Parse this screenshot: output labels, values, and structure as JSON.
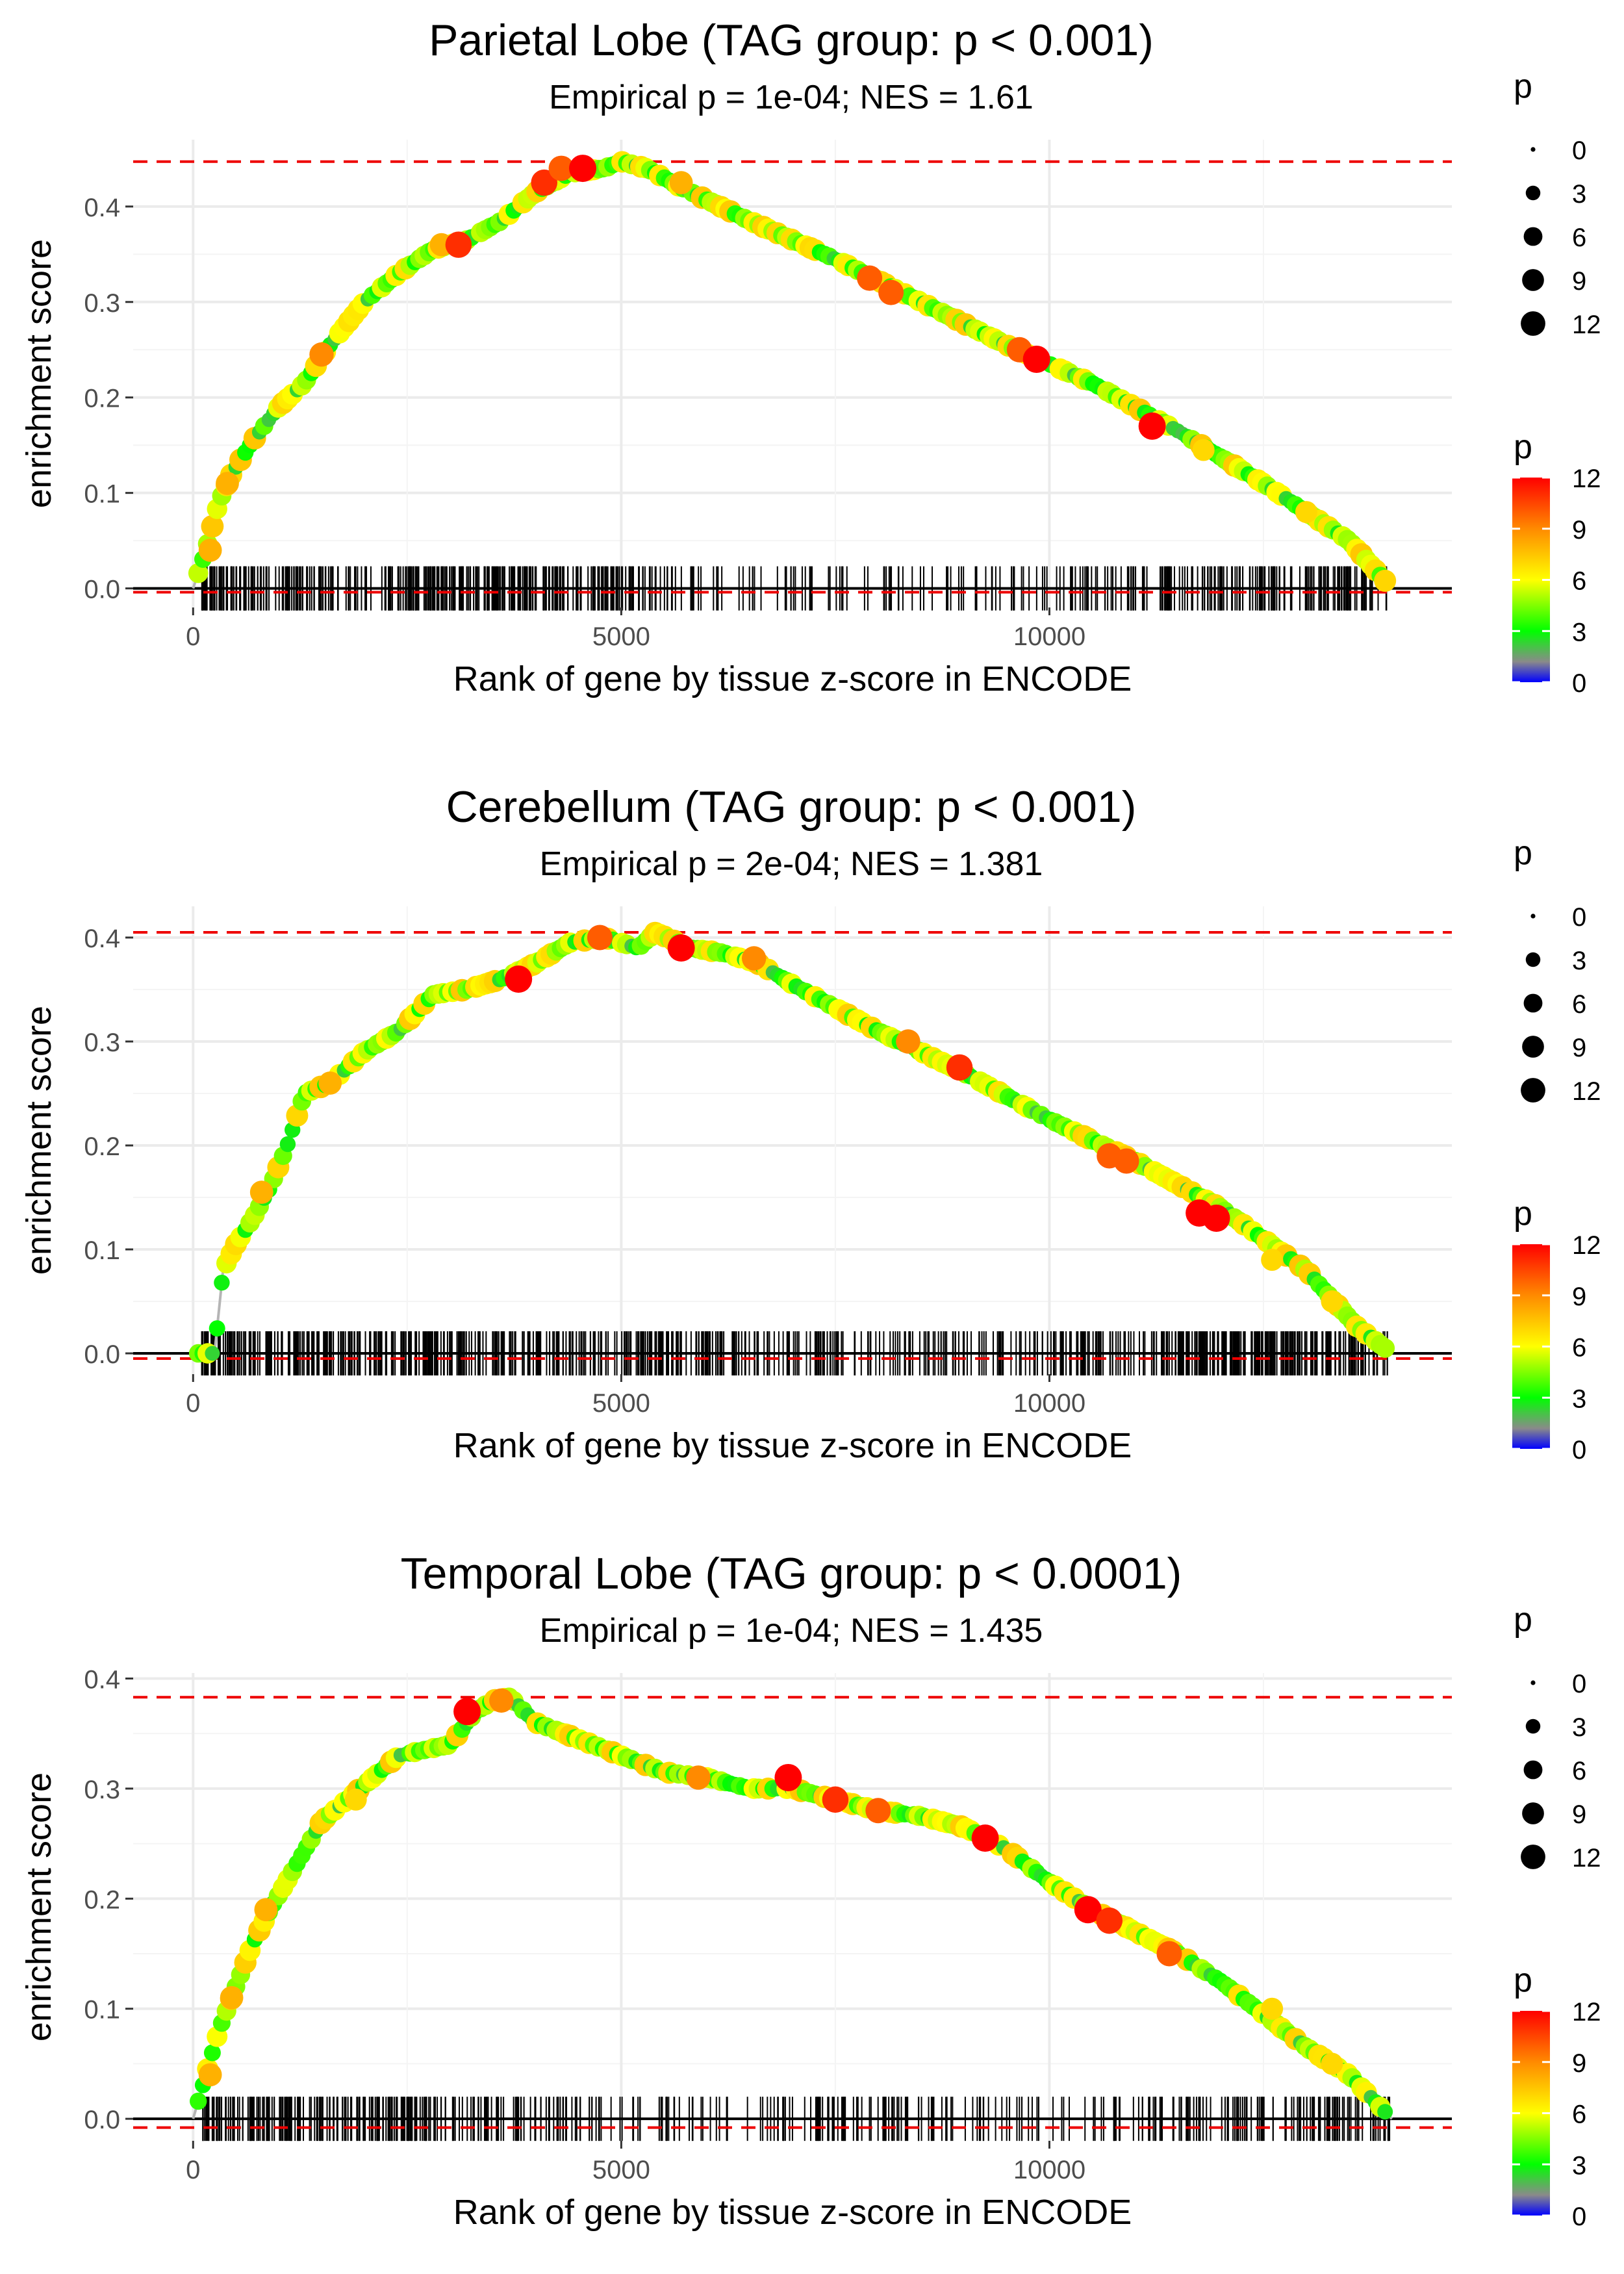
{
  "chart_data": [
    {
      "type": "line",
      "title": "Parietal Lobe (TAG group: p < 0.001)",
      "subtitle": "Empirical p = 1e-04; NES = 1.61",
      "xlabel": "Rank of gene by tissue z-score in ENCODE",
      "ylabel": "enrichment score",
      "xlim": [
        -700,
        14700
      ],
      "ylim": [
        -0.02,
        0.47
      ],
      "x_ticks": [
        0,
        5000,
        10000
      ],
      "x_tick_labels": [
        "0",
        "5000",
        "10000"
      ],
      "y_ticks": [
        0.0,
        0.1,
        0.2,
        0.3,
        0.4
      ],
      "y_tick_labels": [
        "0.0",
        "0.1",
        "0.2",
        "0.3",
        "0.4"
      ],
      "max_es": 0.447,
      "min_es": -0.004,
      "curve": {
        "x": [
          0,
          150,
          300,
          450,
          700,
          1000,
          1300,
          1600,
          2000,
          2400,
          2800,
          3200,
          3600,
          4000,
          4400,
          4800,
          5000,
          5300,
          5700,
          6500,
          7500,
          8500,
          9500,
          10500,
          11500,
          12500,
          13500,
          14000
        ],
        "y": [
          0.0,
          0.04,
          0.09,
          0.12,
          0.155,
          0.19,
          0.215,
          0.255,
          0.3,
          0.33,
          0.355,
          0.365,
          0.385,
          0.415,
          0.435,
          0.44,
          0.447,
          0.44,
          0.42,
          0.385,
          0.345,
          0.3,
          0.255,
          0.215,
          0.165,
          0.11,
          0.05,
          0.0
        ]
      },
      "highlight_points": [
        {
          "x": 200,
          "y": 0.04,
          "p": 8
        },
        {
          "x": 400,
          "y": 0.11,
          "p": 8
        },
        {
          "x": 1500,
          "y": 0.245,
          "p": 9
        },
        {
          "x": 2900,
          "y": 0.36,
          "p": 8
        },
        {
          "x": 3100,
          "y": 0.36,
          "p": 11
        },
        {
          "x": 4100,
          "y": 0.425,
          "p": 11
        },
        {
          "x": 4300,
          "y": 0.44,
          "p": 10
        },
        {
          "x": 4550,
          "y": 0.44,
          "p": 12
        },
        {
          "x": 5700,
          "y": 0.425,
          "p": 8
        },
        {
          "x": 7900,
          "y": 0.325,
          "p": 10
        },
        {
          "x": 8150,
          "y": 0.31,
          "p": 10
        },
        {
          "x": 9650,
          "y": 0.25,
          "p": 10
        },
        {
          "x": 9850,
          "y": 0.24,
          "p": 12
        },
        {
          "x": 11200,
          "y": 0.17,
          "p": 12
        },
        {
          "x": 11800,
          "y": 0.145,
          "p": 7
        },
        {
          "x": 13000,
          "y": 0.08,
          "p": 7
        }
      ],
      "gene_hits": {
        "density": [
          4,
          3,
          2,
          4,
          4,
          3,
          3,
          1,
          1,
          1,
          1,
          1,
          1,
          2,
          2,
          3,
          3,
          3
        ]
      },
      "legend_size": {
        "title": "p",
        "values": [
          0,
          3,
          6,
          9,
          12
        ],
        "labels": [
          "0",
          "3",
          "6",
          "9",
          "12"
        ]
      },
      "legend_color": {
        "title": "p",
        "labels": [
          "12",
          "9",
          "6",
          "3",
          "0"
        ],
        "values": [
          12,
          9,
          6,
          3,
          0
        ]
      }
    },
    {
      "type": "line",
      "title": "Cerebellum (TAG group: p < 0.001)",
      "subtitle": "Empirical p = 2e-04; NES = 1.381",
      "xlabel": "Rank of gene by tissue z-score in ENCODE",
      "ylabel": "enrichment score",
      "xlim": [
        -700,
        14700
      ],
      "ylim": [
        -0.02,
        0.43
      ],
      "x_ticks": [
        0,
        5000,
        10000
      ],
      "x_tick_labels": [
        "0",
        "5000",
        "10000"
      ],
      "y_ticks": [
        0.0,
        0.1,
        0.2,
        0.3,
        0.4
      ],
      "y_tick_labels": [
        "0.0",
        "0.1",
        "0.2",
        "0.3",
        "0.4"
      ],
      "max_es": 0.405,
      "min_es": -0.005,
      "curve": {
        "x": [
          0,
          250,
          350,
          500,
          700,
          900,
          1100,
          1300,
          1600,
          2000,
          2400,
          2800,
          3200,
          3600,
          4000,
          4400,
          4800,
          5200,
          5400,
          5800,
          6200,
          6600,
          7000,
          8000,
          9000,
          10000,
          11000,
          12000,
          13000,
          13600,
          14000
        ],
        "y": [
          0.0,
          0.0,
          0.08,
          0.105,
          0.13,
          0.16,
          0.2,
          0.25,
          0.26,
          0.29,
          0.31,
          0.345,
          0.35,
          0.36,
          0.375,
          0.395,
          0.4,
          0.39,
          0.405,
          0.39,
          0.385,
          0.375,
          0.355,
          0.31,
          0.27,
          0.225,
          0.185,
          0.14,
          0.08,
          0.025,
          0.0
        ]
      },
      "highlight_points": [
        {
          "x": 800,
          "y": 0.155,
          "p": 8
        },
        {
          "x": 1600,
          "y": 0.26,
          "p": 8
        },
        {
          "x": 3800,
          "y": 0.36,
          "p": 12
        },
        {
          "x": 4750,
          "y": 0.4,
          "p": 10
        },
        {
          "x": 5700,
          "y": 0.39,
          "p": 12
        },
        {
          "x": 6550,
          "y": 0.38,
          "p": 9
        },
        {
          "x": 8350,
          "y": 0.3,
          "p": 9
        },
        {
          "x": 8950,
          "y": 0.275,
          "p": 11
        },
        {
          "x": 10700,
          "y": 0.19,
          "p": 10
        },
        {
          "x": 10900,
          "y": 0.185,
          "p": 10
        },
        {
          "x": 11750,
          "y": 0.135,
          "p": 12
        },
        {
          "x": 11950,
          "y": 0.13,
          "p": 12
        },
        {
          "x": 12600,
          "y": 0.09,
          "p": 7
        },
        {
          "x": 13300,
          "y": 0.05,
          "p": 7
        }
      ],
      "gene_hits": {
        "density": [
          4,
          4,
          3,
          4,
          3,
          3,
          3,
          3,
          2,
          2,
          2,
          2,
          2,
          3,
          3,
          4,
          4,
          3
        ]
      },
      "legend_size": {
        "title": "p",
        "values": [
          0,
          3,
          6,
          9,
          12
        ],
        "labels": [
          "0",
          "3",
          "6",
          "9",
          "12"
        ]
      },
      "legend_color": {
        "title": "p",
        "labels": [
          "12",
          "9",
          "6",
          "3",
          "0"
        ],
        "values": [
          12,
          9,
          6,
          3,
          0
        ]
      }
    },
    {
      "type": "line",
      "title": "Temporal Lobe (TAG group: p < 0.0001)",
      "subtitle": "Empirical p = 1e-04; NES = 1.435",
      "xlabel": "Rank of gene by tissue z-score in ENCODE",
      "ylabel": "enrichment score",
      "xlim": [
        -700,
        14700
      ],
      "ylim": [
        -0.02,
        0.405
      ],
      "x_ticks": [
        0,
        5000,
        10000
      ],
      "x_tick_labels": [
        "0",
        "5000",
        "10000"
      ],
      "y_ticks": [
        0.0,
        0.1,
        0.2,
        0.3,
        0.4
      ],
      "y_tick_labels": [
        "0.0",
        "0.1",
        "0.2",
        "0.3",
        "0.4"
      ],
      "max_es": 0.383,
      "min_es": -0.008,
      "curve": {
        "x": [
          0,
          150,
          300,
          500,
          700,
          900,
          1200,
          1500,
          1800,
          2100,
          2400,
          2700,
          3000,
          3300,
          3500,
          3700,
          4000,
          4500,
          5000,
          5500,
          6000,
          6500,
          7000,
          7500,
          8000,
          8500,
          9000,
          9500,
          10000,
          10500,
          11000,
          11500,
          12000,
          12500,
          13000,
          13500,
          14000
        ],
        "y": [
          0.0,
          0.04,
          0.08,
          0.12,
          0.16,
          0.19,
          0.23,
          0.27,
          0.29,
          0.31,
          0.33,
          0.335,
          0.34,
          0.37,
          0.38,
          0.383,
          0.36,
          0.345,
          0.33,
          0.315,
          0.31,
          0.3,
          0.3,
          0.29,
          0.28,
          0.275,
          0.265,
          0.245,
          0.215,
          0.19,
          0.17,
          0.15,
          0.125,
          0.095,
          0.065,
          0.04,
          0.0
        ]
      },
      "highlight_points": [
        {
          "x": 200,
          "y": 0.04,
          "p": 8
        },
        {
          "x": 450,
          "y": 0.11,
          "p": 8
        },
        {
          "x": 850,
          "y": 0.19,
          "p": 8
        },
        {
          "x": 1900,
          "y": 0.29,
          "p": 7
        },
        {
          "x": 3200,
          "y": 0.37,
          "p": 12
        },
        {
          "x": 3600,
          "y": 0.38,
          "p": 9
        },
        {
          "x": 5900,
          "y": 0.31,
          "p": 9
        },
        {
          "x": 6950,
          "y": 0.31,
          "p": 12
        },
        {
          "x": 7500,
          "y": 0.29,
          "p": 11
        },
        {
          "x": 8000,
          "y": 0.28,
          "p": 10
        },
        {
          "x": 9250,
          "y": 0.255,
          "p": 12
        },
        {
          "x": 10450,
          "y": 0.19,
          "p": 12
        },
        {
          "x": 10700,
          "y": 0.18,
          "p": 11
        },
        {
          "x": 11400,
          "y": 0.15,
          "p": 10
        },
        {
          "x": 12600,
          "y": 0.1,
          "p": 7
        },
        {
          "x": 13300,
          "y": 0.05,
          "p": 7
        }
      ],
      "gene_hits": {
        "density": [
          4,
          3,
          3,
          3,
          2,
          2,
          1,
          1,
          1,
          2,
          2,
          1,
          1,
          1,
          2,
          2,
          2,
          2
        ]
      },
      "legend_size": {
        "title": "p",
        "values": [
          0,
          3,
          6,
          9,
          12
        ],
        "labels": [
          "0",
          "3",
          "6",
          "9",
          "12"
        ]
      },
      "legend_color": {
        "title": "p",
        "labels": [
          "12",
          "9",
          "6",
          "3",
          "0"
        ],
        "values": [
          12,
          9,
          6,
          3,
          0
        ]
      }
    }
  ]
}
